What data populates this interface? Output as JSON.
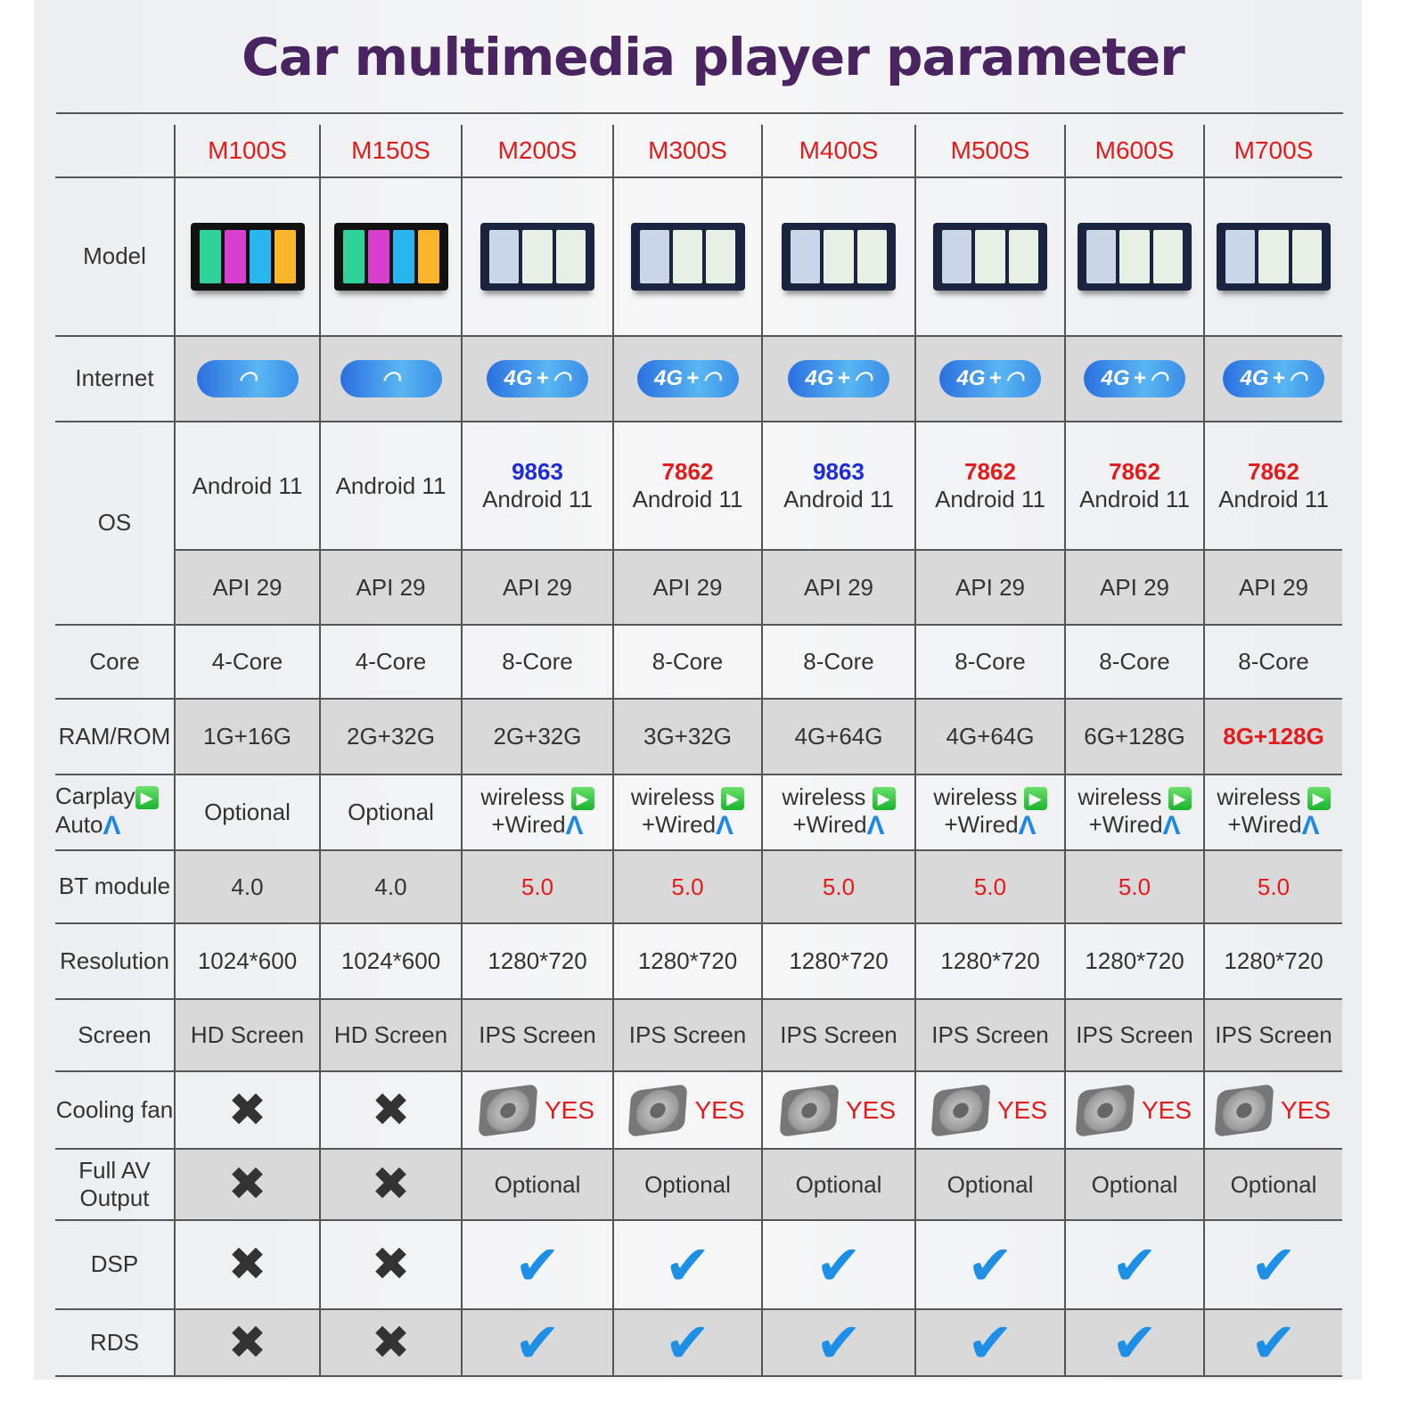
{
  "title": "Car multimedia player parameter",
  "models": [
    "M100S",
    "M150S",
    "M200S",
    "M300S",
    "M400S",
    "M500S",
    "M600S",
    "M700S"
  ],
  "rows": [
    {
      "label": "Model",
      "type": "image",
      "values": [
        "screen-4tile",
        "screen-4tile",
        "screen-map",
        "screen-map",
        "screen-map",
        "screen-map",
        "screen-map",
        "screen-map"
      ]
    },
    {
      "label": "Internet",
      "type": "net",
      "shade": true,
      "values": [
        "wifi",
        "wifi",
        "4G+wifi",
        "4G+wifi",
        "4G+wifi",
        "4G+wifi",
        "4G+wifi",
        "4G+wifi"
      ],
      "net_text": "4G",
      "plus": "+"
    },
    {
      "label": "OS",
      "type": "os",
      "chips": [
        "",
        "",
        "9863",
        "7862",
        "9863",
        "7862",
        "7862",
        "7862"
      ],
      "chip_colors": [
        "",
        "",
        "#1d2bd8",
        "#e41b1b",
        "#1d2bd8",
        "#e41b1b",
        "#e41b1b",
        "#e41b1b"
      ],
      "values": [
        "Android 11",
        "Android 11",
        "Android 11",
        "Android 11",
        "Android 11",
        "Android 11",
        "Android 11",
        "Android 11"
      ]
    },
    {
      "label": "",
      "type": "text",
      "shade": true,
      "values": [
        "API 29",
        "API 29",
        "API 29",
        "API 29",
        "API 29",
        "API 29",
        "API 29",
        "API 29"
      ]
    },
    {
      "label": "Core",
      "type": "text",
      "values": [
        "4-Core",
        "4-Core",
        "8-Core",
        "8-Core",
        "8-Core",
        "8-Core",
        "8-Core",
        "8-Core"
      ]
    },
    {
      "label": "RAM/ROM",
      "type": "text",
      "shade": true,
      "values": [
        "1G+16G",
        "2G+32G",
        "2G+32G",
        "3G+32G",
        "4G+64G",
        "4G+64G",
        "6G+128G",
        "8G+128G"
      ],
      "red": [
        7
      ]
    },
    {
      "label": "Carplay",
      "label2": "Auto",
      "type": "carplay",
      "values": [
        "Optional",
        "Optional",
        "wireless",
        "wireless",
        "wireless",
        "wireless",
        "wireless",
        "wireless"
      ],
      "line2": "+Wired"
    },
    {
      "label": "BT module",
      "type": "text",
      "shade": true,
      "values": [
        "4.0",
        "4.0",
        "5.0",
        "5.0",
        "5.0",
        "5.0",
        "5.0",
        "5.0"
      ],
      "red": [
        2,
        3,
        4,
        5,
        6,
        7
      ]
    },
    {
      "label": "Resolution",
      "type": "text",
      "values": [
        "1024*600",
        "1024*600",
        "1280*720",
        "1280*720",
        "1280*720",
        "1280*720",
        "1280*720",
        "1280*720"
      ]
    },
    {
      "label": "Screen",
      "type": "text",
      "shade": true,
      "values": [
        "HD Screen",
        "HD Screen",
        "IPS Screen",
        "IPS Screen",
        "IPS Screen",
        "IPS Screen",
        "IPS Screen",
        "IPS Screen"
      ]
    },
    {
      "label": "Cooling fan",
      "type": "mark",
      "values": [
        "x",
        "x",
        "YES",
        "YES",
        "YES",
        "YES",
        "YES",
        "YES"
      ]
    },
    {
      "label": "Full AV Output",
      "type": "mark",
      "shade": true,
      "values": [
        "x",
        "x",
        "Optional",
        "Optional",
        "Optional",
        "Optional",
        "Optional",
        "Optional"
      ]
    },
    {
      "label": "DSP",
      "type": "mark",
      "values": [
        "x",
        "x",
        "check",
        "check",
        "check",
        "check",
        "check",
        "check"
      ]
    },
    {
      "label": "RDS",
      "type": "mark",
      "shade": true,
      "values": [
        "x",
        "x",
        "check",
        "check",
        "check",
        "check",
        "check",
        "check"
      ]
    }
  ],
  "colors": {
    "title": "#4a2460",
    "accent_red": "#e41b1b",
    "accent_blue": "#1d2bd8",
    "check": "#1d8fe6",
    "shade": "#d9d9d9"
  }
}
